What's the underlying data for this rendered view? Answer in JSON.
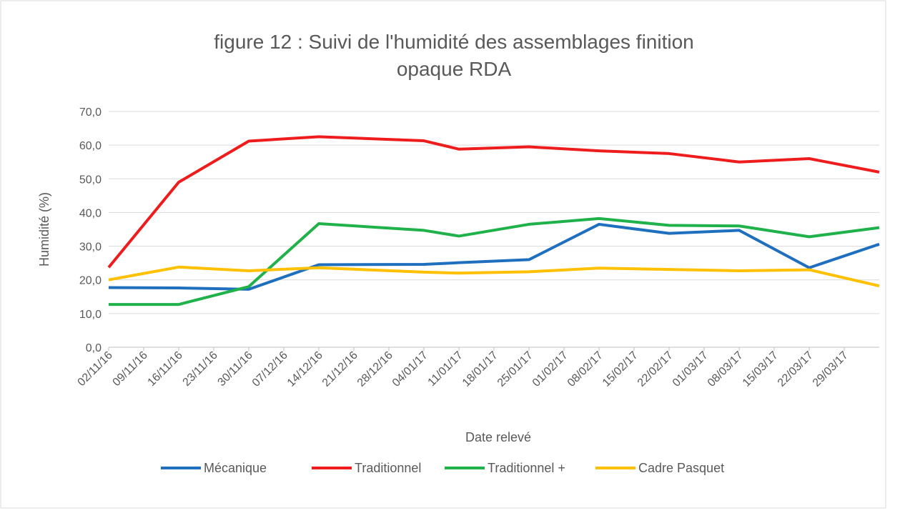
{
  "chart_data": {
    "type": "line",
    "title": "figure 12 : Suivi de l'humidité des assemblages finition opaque RDA",
    "x_label": "Date relevé",
    "y_label": "Humidité (%)",
    "x": [
      "02/11/16",
      "16/11/16",
      "30/11/16",
      "14/12/16",
      "04/01/17",
      "11/01/17",
      "25/01/17",
      "08/02/17",
      "22/02/17",
      "08/03/17",
      "22/03/17",
      "05/04/17"
    ],
    "xlim": [
      "02/11/16",
      "05/04/17"
    ],
    "xticks": [
      "02/11/16",
      "09/11/16",
      "16/11/16",
      "23/11/16",
      "30/11/16",
      "07/12/16",
      "14/12/16",
      "21/12/16",
      "28/12/16",
      "04/01/17",
      "11/01/17",
      "18/01/17",
      "25/01/17",
      "01/02/17",
      "08/02/17",
      "15/02/17",
      "22/02/17",
      "01/03/17",
      "08/03/17",
      "15/03/17",
      "22/03/17",
      "29/03/17"
    ],
    "ylim": [
      0,
      70
    ],
    "yticks": [
      {
        "value": 0,
        "label": "0,0"
      },
      {
        "value": 10,
        "label": "10,0"
      },
      {
        "value": 20,
        "label": "20,0"
      },
      {
        "value": 30,
        "label": "30,0"
      },
      {
        "value": 40,
        "label": "40,0"
      },
      {
        "value": 50,
        "label": "50,0"
      },
      {
        "value": 60,
        "label": "60,0"
      },
      {
        "value": 70,
        "label": "70,0"
      }
    ],
    "grid": true,
    "legend": "bottom",
    "series": [
      {
        "name": "Mécanique",
        "color": "#1f6fbf",
        "values": [
          17.7,
          17.6,
          17.2,
          24.5,
          24.6,
          25.1,
          26.0,
          36.5,
          33.8,
          34.7,
          23.6,
          30.6
        ]
      },
      {
        "name": "Traditionnel",
        "color": "#ee1c1c",
        "values": [
          23.7,
          49.0,
          61.2,
          62.5,
          61.3,
          58.8,
          59.5,
          58.3,
          57.5,
          55.0,
          56.0,
          52.0
        ]
      },
      {
        "name": "Traditionnel +",
        "color": "#1fb14a",
        "values": [
          12.7,
          12.7,
          18.0,
          36.7,
          34.7,
          33.0,
          36.5,
          38.2,
          36.2,
          36.0,
          32.8,
          35.5
        ]
      },
      {
        "name": "Cadre Pasquet",
        "color": "#ffc000",
        "values": [
          20.0,
          23.8,
          22.7,
          23.6,
          22.3,
          22.0,
          22.4,
          23.5,
          23.1,
          22.7,
          23.0,
          18.2
        ]
      }
    ]
  }
}
